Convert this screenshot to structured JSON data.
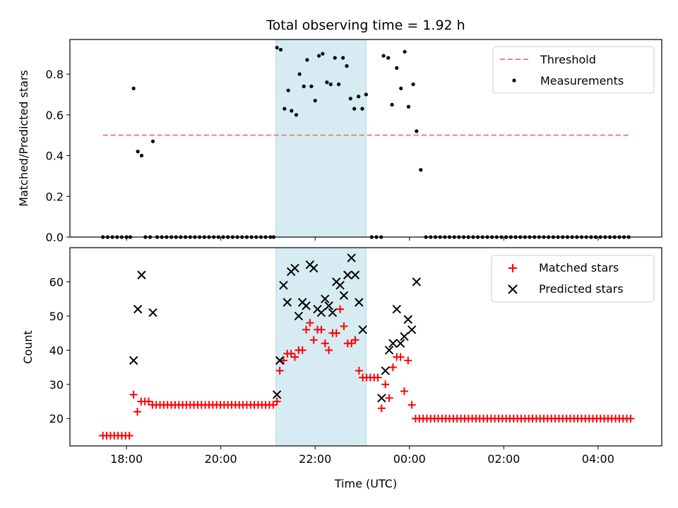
{
  "chart_data": {
    "type": "scatter",
    "title": "Total observing time = 1.92 h",
    "xlabel": "Time (UTC)",
    "xticks": [
      {
        "t": 18.0,
        "label": "18:00"
      },
      {
        "t": 20.0,
        "label": "20:00"
      },
      {
        "t": 22.0,
        "label": "22:00"
      },
      {
        "t": 24.0,
        "label": "00:00"
      },
      {
        "t": 26.0,
        "label": "02:00"
      },
      {
        "t": 28.0,
        "label": "04:00"
      }
    ],
    "xlim": [
      16.8,
      29.35
    ],
    "shaded_interval": [
      21.17,
      23.08
    ],
    "colors": {
      "threshold": "#f08080",
      "matched": "#ff0000",
      "predicted": "#000000",
      "shade": "#add8e6",
      "measurement": "#000000"
    },
    "top": {
      "ylabel": "Matched/Predicted stars",
      "ylim": [
        0,
        0.97
      ],
      "yticks": [
        "0.0",
        "0.2",
        "0.4",
        "0.6",
        "0.8"
      ],
      "legend": {
        "threshold": "Threshold",
        "measurements": "Measurements"
      },
      "threshold": {
        "y": 0.5,
        "x_range": [
          17.5,
          28.65
        ]
      },
      "measurements": [
        [
          17.5,
          0
        ],
        [
          17.6,
          0
        ],
        [
          17.7,
          0
        ],
        [
          17.8,
          0
        ],
        [
          17.9,
          0
        ],
        [
          18.0,
          0
        ],
        [
          18.08,
          0
        ],
        [
          18.15,
          0.73
        ],
        [
          18.24,
          0.42
        ],
        [
          18.32,
          0.4
        ],
        [
          18.4,
          0
        ],
        [
          18.5,
          0
        ],
        [
          18.56,
          0.47
        ],
        [
          18.65,
          0
        ],
        [
          18.75,
          0
        ],
        [
          18.85,
          0
        ],
        [
          18.95,
          0
        ],
        [
          19.05,
          0
        ],
        [
          19.15,
          0
        ],
        [
          19.25,
          0
        ],
        [
          19.35,
          0
        ],
        [
          19.45,
          0
        ],
        [
          19.55,
          0
        ],
        [
          19.65,
          0
        ],
        [
          19.75,
          0
        ],
        [
          19.85,
          0
        ],
        [
          19.95,
          0
        ],
        [
          20.05,
          0
        ],
        [
          20.15,
          0
        ],
        [
          20.25,
          0
        ],
        [
          20.35,
          0
        ],
        [
          20.45,
          0
        ],
        [
          20.55,
          0
        ],
        [
          20.65,
          0
        ],
        [
          20.75,
          0
        ],
        [
          20.85,
          0
        ],
        [
          20.95,
          0
        ],
        [
          21.05,
          0
        ],
        [
          21.12,
          0
        ],
        [
          21.19,
          0.93
        ],
        [
          21.27,
          0.92
        ],
        [
          21.35,
          0.63
        ],
        [
          21.43,
          0.72
        ],
        [
          21.5,
          0.62
        ],
        [
          21.6,
          0.6
        ],
        [
          21.67,
          0.8
        ],
        [
          21.76,
          0.74
        ],
        [
          21.83,
          0.87
        ],
        [
          21.92,
          0.74
        ],
        [
          22.0,
          0.67
        ],
        [
          22.08,
          0.89
        ],
        [
          22.16,
          0.9
        ],
        [
          22.25,
          0.76
        ],
        [
          22.33,
          0.75
        ],
        [
          22.42,
          0.88
        ],
        [
          22.5,
          0.75
        ],
        [
          22.59,
          0.88
        ],
        [
          22.67,
          0.84
        ],
        [
          22.75,
          0.68
        ],
        [
          22.83,
          0.63
        ],
        [
          22.92,
          0.69
        ],
        [
          23.0,
          0.63
        ],
        [
          23.08,
          0.7
        ],
        [
          23.2,
          0
        ],
        [
          23.3,
          0
        ],
        [
          23.4,
          0
        ],
        [
          23.45,
          0.89
        ],
        [
          23.55,
          0.88
        ],
        [
          23.63,
          0.65
        ],
        [
          23.73,
          0.83
        ],
        [
          23.82,
          0.73
        ],
        [
          23.9,
          0.91
        ],
        [
          23.98,
          0.64
        ],
        [
          24.08,
          0.75
        ],
        [
          24.15,
          0.52
        ],
        [
          24.24,
          0.33
        ],
        [
          24.35,
          0
        ],
        [
          24.45,
          0
        ],
        [
          24.55,
          0
        ],
        [
          24.65,
          0
        ],
        [
          24.75,
          0
        ],
        [
          24.85,
          0
        ],
        [
          24.95,
          0
        ],
        [
          25.05,
          0
        ],
        [
          25.15,
          0
        ],
        [
          25.25,
          0
        ],
        [
          25.35,
          0
        ],
        [
          25.45,
          0
        ],
        [
          25.55,
          0
        ],
        [
          25.65,
          0
        ],
        [
          25.75,
          0
        ],
        [
          25.85,
          0
        ],
        [
          25.95,
          0
        ],
        [
          26.05,
          0
        ],
        [
          26.15,
          0
        ],
        [
          26.25,
          0
        ],
        [
          26.35,
          0
        ],
        [
          26.45,
          0
        ],
        [
          26.55,
          0
        ],
        [
          26.65,
          0
        ],
        [
          26.75,
          0
        ],
        [
          26.85,
          0
        ],
        [
          26.95,
          0
        ],
        [
          27.05,
          0
        ],
        [
          27.15,
          0
        ],
        [
          27.25,
          0
        ],
        [
          27.35,
          0
        ],
        [
          27.45,
          0
        ],
        [
          27.55,
          0
        ],
        [
          27.65,
          0
        ],
        [
          27.75,
          0
        ],
        [
          27.85,
          0
        ],
        [
          27.95,
          0
        ],
        [
          28.05,
          0
        ],
        [
          28.15,
          0
        ],
        [
          28.25,
          0
        ],
        [
          28.35,
          0
        ],
        [
          28.45,
          0
        ],
        [
          28.55,
          0
        ],
        [
          28.65,
          0
        ]
      ]
    },
    "bottom": {
      "ylabel": "Count",
      "ylim": [
        12,
        70
      ],
      "yticks": [
        "20",
        "30",
        "40",
        "50",
        "60"
      ],
      "legend": {
        "matched": "Matched stars",
        "predicted": "Predicted stars"
      },
      "matched": [
        [
          17.5,
          15
        ],
        [
          17.58,
          15
        ],
        [
          17.66,
          15
        ],
        [
          17.74,
          15
        ],
        [
          17.82,
          15
        ],
        [
          17.9,
          15
        ],
        [
          17.98,
          15
        ],
        [
          18.06,
          15
        ],
        [
          18.15,
          27
        ],
        [
          18.23,
          22
        ],
        [
          18.31,
          25
        ],
        [
          18.39,
          25
        ],
        [
          18.47,
          25
        ],
        [
          18.55,
          24
        ],
        [
          18.63,
          24
        ],
        [
          18.71,
          24
        ],
        [
          18.79,
          24
        ],
        [
          18.87,
          24
        ],
        [
          18.95,
          24
        ],
        [
          19.03,
          24
        ],
        [
          19.11,
          24
        ],
        [
          19.19,
          24
        ],
        [
          19.27,
          24
        ],
        [
          19.35,
          24
        ],
        [
          19.43,
          24
        ],
        [
          19.51,
          24
        ],
        [
          19.59,
          24
        ],
        [
          19.67,
          24
        ],
        [
          19.75,
          24
        ],
        [
          19.83,
          24
        ],
        [
          19.91,
          24
        ],
        [
          19.99,
          24
        ],
        [
          20.07,
          24
        ],
        [
          20.15,
          24
        ],
        [
          20.23,
          24
        ],
        [
          20.31,
          24
        ],
        [
          20.39,
          24
        ],
        [
          20.47,
          24
        ],
        [
          20.55,
          24
        ],
        [
          20.63,
          24
        ],
        [
          20.71,
          24
        ],
        [
          20.79,
          24
        ],
        [
          20.87,
          24
        ],
        [
          20.95,
          24
        ],
        [
          21.03,
          24
        ],
        [
          21.11,
          24
        ],
        [
          21.19,
          25
        ],
        [
          21.25,
          34
        ],
        [
          21.33,
          37
        ],
        [
          21.41,
          39
        ],
        [
          21.49,
          39
        ],
        [
          21.57,
          38
        ],
        [
          21.65,
          40
        ],
        [
          21.73,
          40
        ],
        [
          21.81,
          46
        ],
        [
          21.89,
          48
        ],
        [
          21.97,
          43
        ],
        [
          22.05,
          46
        ],
        [
          22.13,
          46
        ],
        [
          22.21,
          42
        ],
        [
          22.29,
          40
        ],
        [
          22.37,
          45
        ],
        [
          22.45,
          45
        ],
        [
          22.53,
          52
        ],
        [
          22.61,
          47
        ],
        [
          22.69,
          42
        ],
        [
          22.77,
          42
        ],
        [
          22.85,
          43
        ],
        [
          22.93,
          34
        ],
        [
          23.01,
          32
        ],
        [
          23.09,
          32
        ],
        [
          23.17,
          32
        ],
        [
          23.25,
          32
        ],
        [
          23.33,
          32
        ],
        [
          23.41,
          23
        ],
        [
          23.49,
          30
        ],
        [
          23.57,
          26
        ],
        [
          23.65,
          35
        ],
        [
          23.73,
          38
        ],
        [
          23.81,
          38
        ],
        [
          23.89,
          28
        ],
        [
          23.97,
          37
        ],
        [
          24.05,
          24
        ],
        [
          24.13,
          20
        ],
        [
          24.21,
          20
        ],
        [
          24.29,
          20
        ],
        [
          24.37,
          20
        ],
        [
          24.45,
          20
        ],
        [
          24.53,
          20
        ],
        [
          24.61,
          20
        ],
        [
          24.69,
          20
        ],
        [
          24.77,
          20
        ],
        [
          24.85,
          20
        ],
        [
          24.93,
          20
        ],
        [
          25.01,
          20
        ],
        [
          25.09,
          20
        ],
        [
          25.17,
          20
        ],
        [
          25.25,
          20
        ],
        [
          25.33,
          20
        ],
        [
          25.41,
          20
        ],
        [
          25.49,
          20
        ],
        [
          25.57,
          20
        ],
        [
          25.65,
          20
        ],
        [
          25.73,
          20
        ],
        [
          25.81,
          20
        ],
        [
          25.89,
          20
        ],
        [
          25.97,
          20
        ],
        [
          26.05,
          20
        ],
        [
          26.13,
          20
        ],
        [
          26.21,
          20
        ],
        [
          26.29,
          20
        ],
        [
          26.37,
          20
        ],
        [
          26.45,
          20
        ],
        [
          26.53,
          20
        ],
        [
          26.61,
          20
        ],
        [
          26.69,
          20
        ],
        [
          26.77,
          20
        ],
        [
          26.85,
          20
        ],
        [
          26.93,
          20
        ],
        [
          27.01,
          20
        ],
        [
          27.09,
          20
        ],
        [
          27.17,
          20
        ],
        [
          27.25,
          20
        ],
        [
          27.33,
          20
        ],
        [
          27.41,
          20
        ],
        [
          27.49,
          20
        ],
        [
          27.57,
          20
        ],
        [
          27.65,
          20
        ],
        [
          27.73,
          20
        ],
        [
          27.81,
          20
        ],
        [
          27.89,
          20
        ],
        [
          27.97,
          20
        ],
        [
          28.05,
          20
        ],
        [
          28.13,
          20
        ],
        [
          28.21,
          20
        ],
        [
          28.29,
          20
        ],
        [
          28.37,
          20
        ],
        [
          28.45,
          20
        ],
        [
          28.53,
          20
        ],
        [
          28.61,
          20
        ],
        [
          28.69,
          20
        ]
      ],
      "predicted": [
        [
          18.15,
          37
        ],
        [
          18.24,
          52
        ],
        [
          18.32,
          62
        ],
        [
          18.56,
          51
        ],
        [
          21.19,
          27
        ],
        [
          21.25,
          37
        ],
        [
          21.33,
          59
        ],
        [
          21.41,
          54
        ],
        [
          21.49,
          63
        ],
        [
          21.57,
          64
        ],
        [
          21.65,
          50
        ],
        [
          21.73,
          54
        ],
        [
          21.81,
          53
        ],
        [
          21.89,
          65
        ],
        [
          21.97,
          64
        ],
        [
          22.05,
          52
        ],
        [
          22.13,
          51
        ],
        [
          22.21,
          55
        ],
        [
          22.29,
          53
        ],
        [
          22.37,
          51
        ],
        [
          22.45,
          60
        ],
        [
          22.53,
          59
        ],
        [
          22.61,
          56
        ],
        [
          22.69,
          62
        ],
        [
          22.77,
          67
        ],
        [
          22.85,
          62
        ],
        [
          22.93,
          54
        ],
        [
          23.01,
          46
        ],
        [
          23.41,
          26
        ],
        [
          23.49,
          34
        ],
        [
          23.57,
          40
        ],
        [
          23.65,
          42
        ],
        [
          23.73,
          52
        ],
        [
          23.81,
          42
        ],
        [
          23.89,
          44
        ],
        [
          23.97,
          49
        ],
        [
          24.05,
          46
        ],
        [
          24.15,
          60
        ]
      ]
    }
  }
}
